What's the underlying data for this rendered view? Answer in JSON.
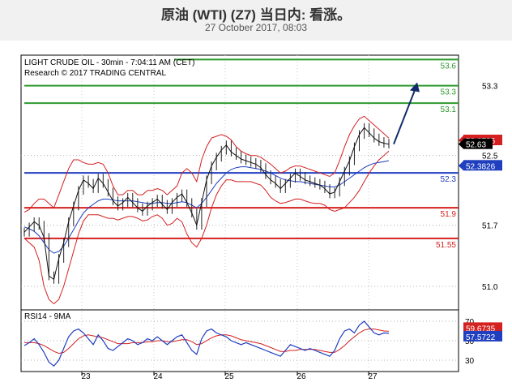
{
  "header": {
    "title": "原油 (WTI) (Z7) 当日内: 看涨。",
    "date": "27 October 2017, 08:03"
  },
  "chart_data": {
    "type": "line",
    "panel_title": "LIGHT CRUDE OIL - 30min - 7:04:11 AM (CET)",
    "copyright": "Research © 2017 TRADING CENTRAL",
    "x_tick_labels": [
      "23",
      "24",
      "25",
      "26",
      "27"
    ],
    "price_axis": {
      "ylim": [
        50.73,
        53.65
      ],
      "ticks": [
        {
          "label": "53.3",
          "value": 53.3
        },
        {
          "label": "52.5",
          "value": 52.5
        },
        {
          "label": "51.7",
          "value": 51.7
        },
        {
          "label": "51.0",
          "value": 51.0
        }
      ]
    },
    "levels": [
      {
        "label": "53.6",
        "value": 53.6,
        "color": "#2e9a2e"
      },
      {
        "label": "53.3",
        "value": 53.3,
        "color": "#2e9a2e"
      },
      {
        "label": "53.1",
        "value": 53.1,
        "color": "#2e9a2e"
      },
      {
        "label": "52.3",
        "value": 52.3,
        "color": "#1f3fbf"
      },
      {
        "label": "51.9",
        "value": 51.9,
        "color": "#d42020"
      },
      {
        "label": "51.55",
        "value": 51.55,
        "color": "#d42020"
      }
    ],
    "markers": [
      {
        "label": "52.6735",
        "value": 52.6735,
        "color": "#d42020"
      },
      {
        "label": "52.63",
        "value": 52.63,
        "color": "#000000"
      },
      {
        "label": "52.3826",
        "value": 52.3826,
        "color": "#1f3fbf"
      }
    ],
    "price_series": [
      51.62,
      51.68,
      51.74,
      51.7,
      51.56,
      51.12,
      51.08,
      51.32,
      51.5,
      51.74,
      51.92,
      52.1,
      52.22,
      52.18,
      52.12,
      52.24,
      52.18,
      52.08,
      51.98,
      51.92,
      51.96,
      52.02,
      51.96,
      51.9,
      51.86,
      51.92,
      51.96,
      52.0,
      51.94,
      51.88,
      51.96,
      52.02,
      52.06,
      51.96,
      51.84,
      51.7,
      51.96,
      52.22,
      52.38,
      52.48,
      52.56,
      52.62,
      52.54,
      52.5,
      52.46,
      52.44,
      52.42,
      52.4,
      52.36,
      52.28,
      52.22,
      52.18,
      52.12,
      52.18,
      52.24,
      52.3,
      52.26,
      52.22,
      52.2,
      52.18,
      52.16,
      52.12,
      52.06,
      52.08,
      52.2,
      52.32,
      52.44,
      52.6,
      52.74,
      52.82,
      52.76,
      52.7,
      52.66,
      52.64,
      52.63
    ],
    "bollinger_upper": [
      51.85,
      51.88,
      51.95,
      52.0,
      52.0,
      51.95,
      51.9,
      52.05,
      52.2,
      52.35,
      52.45,
      52.45,
      52.42,
      52.4,
      52.4,
      52.42,
      52.4,
      52.3,
      52.15,
      52.05,
      52.05,
      52.1,
      52.1,
      52.05,
      52.05,
      52.1,
      52.1,
      52.12,
      52.1,
      52.05,
      52.1,
      52.15,
      52.3,
      52.35,
      52.3,
      52.2,
      52.45,
      52.6,
      52.7,
      52.72,
      52.74,
      52.72,
      52.68,
      52.6,
      52.55,
      52.52,
      52.5,
      52.5,
      52.48,
      52.44,
      52.4,
      52.35,
      52.3,
      52.32,
      52.36,
      52.38,
      52.38,
      52.36,
      52.34,
      52.32,
      52.3,
      52.28,
      52.26,
      52.3,
      52.44,
      52.6,
      52.74,
      52.84,
      52.92,
      52.95,
      52.9,
      52.85,
      52.8,
      52.75,
      52.7
    ],
    "bollinger_lower": [
      51.55,
      51.5,
      51.45,
      51.3,
      51.0,
      50.85,
      50.8,
      50.85,
      51.0,
      51.2,
      51.4,
      51.6,
      51.75,
      51.82,
      51.82,
      51.82,
      51.8,
      51.78,
      51.78,
      51.76,
      51.78,
      51.8,
      51.8,
      51.78,
      51.75,
      51.76,
      51.8,
      51.82,
      51.78,
      51.7,
      51.72,
      51.78,
      51.74,
      51.6,
      51.5,
      51.45,
      51.55,
      51.7,
      51.9,
      52.05,
      52.15,
      52.22,
      52.22,
      52.2,
      52.2,
      52.2,
      52.2,
      52.18,
      52.16,
      52.1,
      52.02,
      51.98,
      51.95,
      51.96,
      51.98,
      52.0,
      52.0,
      51.98,
      51.96,
      51.95,
      51.95,
      51.93,
      51.88,
      51.86,
      51.88,
      51.9,
      51.96,
      52.02,
      52.1,
      52.2,
      52.3,
      52.38,
      52.45,
      52.5,
      52.55
    ],
    "moving_average": [
      51.68,
      51.66,
      51.63,
      51.58,
      51.5,
      51.42,
      51.38,
      51.4,
      51.46,
      51.55,
      51.65,
      51.75,
      51.84,
      51.9,
      51.94,
      51.98,
      52.0,
      52.0,
      51.99,
      51.98,
      51.98,
      51.98,
      51.98,
      51.97,
      51.96,
      51.95,
      51.95,
      51.96,
      51.96,
      51.95,
      51.95,
      51.96,
      51.97,
      51.96,
      51.93,
      51.9,
      51.95,
      52.02,
      52.1,
      52.18,
      52.24,
      52.3,
      52.34,
      52.36,
      52.37,
      52.37,
      52.36,
      52.35,
      52.34,
      52.32,
      52.3,
      52.27,
      52.24,
      52.22,
      52.21,
      52.2,
      52.2,
      52.19,
      52.18,
      52.17,
      52.16,
      52.15,
      52.14,
      52.14,
      52.16,
      52.2,
      52.24,
      52.28,
      52.32,
      52.36,
      52.39,
      52.41,
      52.42,
      52.43,
      52.44
    ],
    "forecast_arrow": {
      "from": 52.63,
      "to": 53.32
    },
    "rsi": {
      "label": "RSI14 - 9MA",
      "ylim": [
        20,
        80
      ],
      "ticks": [
        {
          "label": "70",
          "value": 70
        },
        {
          "label": "50",
          "value": 50
        },
        {
          "label": "30",
          "value": 30
        }
      ],
      "markers": [
        {
          "label": "59.6735",
          "value": 59.6735,
          "color": "#d42020"
        },
        {
          "label": "57.5722",
          "value": 57.5722,
          "color": "#1f3fbf"
        }
      ],
      "rsi_series": [
        45,
        48,
        52,
        46,
        38,
        28,
        24,
        30,
        42,
        54,
        60,
        62,
        58,
        52,
        46,
        56,
        50,
        42,
        40,
        44,
        48,
        52,
        50,
        46,
        48,
        52,
        50,
        54,
        50,
        46,
        50,
        54,
        56,
        48,
        40,
        36,
        52,
        60,
        62,
        58,
        56,
        54,
        50,
        48,
        46,
        48,
        46,
        44,
        42,
        40,
        38,
        36,
        34,
        40,
        46,
        44,
        42,
        40,
        42,
        40,
        38,
        36,
        34,
        40,
        52,
        60,
        62,
        58,
        66,
        70,
        64,
        58,
        56,
        58,
        57.57
      ],
      "ma_series": [
        48,
        48,
        48,
        47,
        45,
        42,
        39,
        37,
        38,
        42,
        47,
        52,
        55,
        56,
        55,
        54,
        53,
        51,
        49,
        47,
        47,
        47,
        48,
        48,
        48,
        49,
        49,
        50,
        50,
        49,
        49,
        50,
        51,
        51,
        49,
        46,
        47,
        50,
        53,
        55,
        56,
        56,
        55,
        53,
        51,
        50,
        49,
        48,
        47,
        45,
        43,
        41,
        39,
        39,
        40,
        40,
        41,
        41,
        41,
        41,
        40,
        39,
        38,
        38,
        41,
        45,
        50,
        54,
        58,
        61,
        62,
        62,
        61,
        60,
        59.67
      ]
    }
  }
}
